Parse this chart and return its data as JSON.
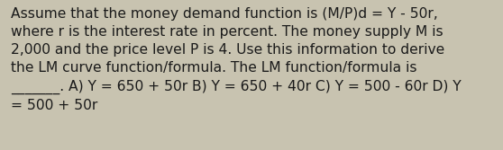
{
  "text": "Assume that the money demand function is (M/P)d = Y - 50r,\nwhere r is the interest rate in percent. The money supply M is\n2,000 and the price level P is 4. Use this information to derive\nthe LM curve function/formula. The LM function/formula is\n_______. A) Y = 650 + 50r B) Y = 650 + 40r C) Y = 500 - 60r D) Y\n= 500 + 50r",
  "background_color": "#c8c3b0",
  "text_color": "#1a1a1a",
  "font_size": 11.2,
  "fig_width": 5.58,
  "fig_height": 1.67,
  "dpi": 100
}
